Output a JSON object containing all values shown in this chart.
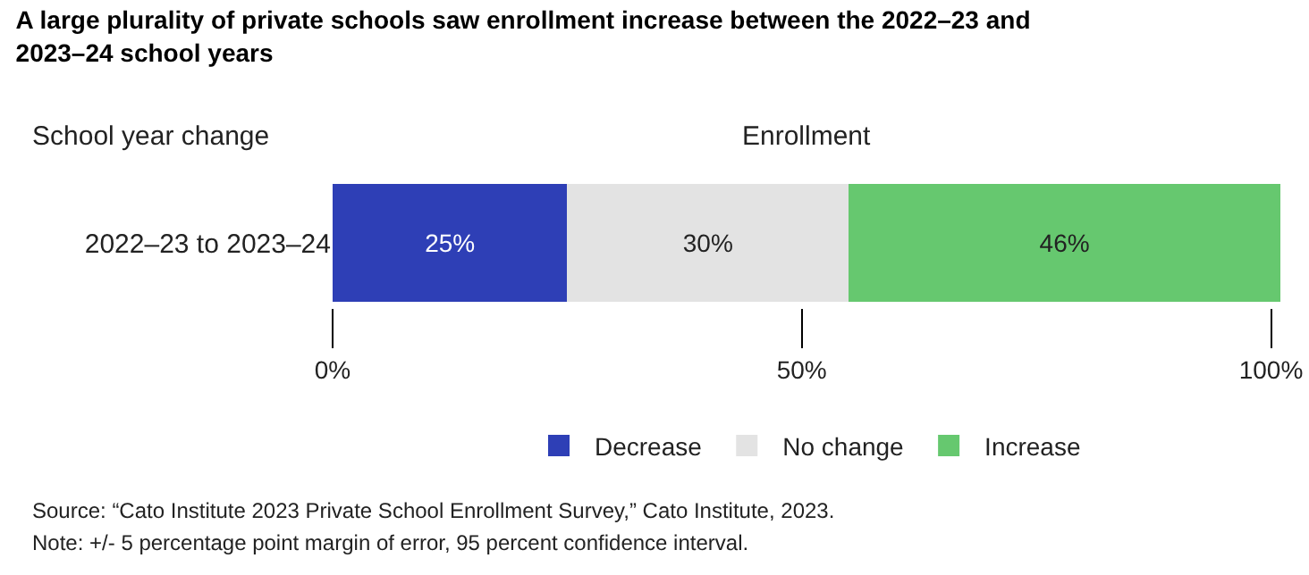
{
  "chart_data": {
    "type": "bar",
    "orientation": "horizontal",
    "stacked": true,
    "title": "A large plurality of private schools saw enrollment increase between the 2022–23 and 2023–24 school years",
    "ylabel": "School year change",
    "xlabel": "Enrollment",
    "categories": [
      "2022–23 to 2023–24"
    ],
    "series": [
      {
        "name": "Decrease",
        "color": "#2e3fb6",
        "values": [
          25
        ],
        "value_labels": [
          "25%"
        ]
      },
      {
        "name": "No change",
        "color": "#e3e3e3",
        "values": [
          30
        ],
        "value_labels": [
          "30%"
        ]
      },
      {
        "name": "Increase",
        "color": "#66c86f",
        "values": [
          46
        ],
        "value_labels": [
          "46%"
        ]
      }
    ],
    "xlim": [
      0,
      101
    ],
    "xticks": [
      {
        "value": 0,
        "label": "0%"
      },
      {
        "value": 50,
        "label": "50%"
      },
      {
        "value": 100,
        "label": "100%"
      }
    ],
    "grid": false,
    "legend": "bottom",
    "annotations": [
      "Source: “Cato Institute 2023 Private School Enrollment Survey,” Cato Institute, 2023.",
      "Note: +/- 5 percentage point margin of error, 95 percent confidence interval."
    ]
  }
}
